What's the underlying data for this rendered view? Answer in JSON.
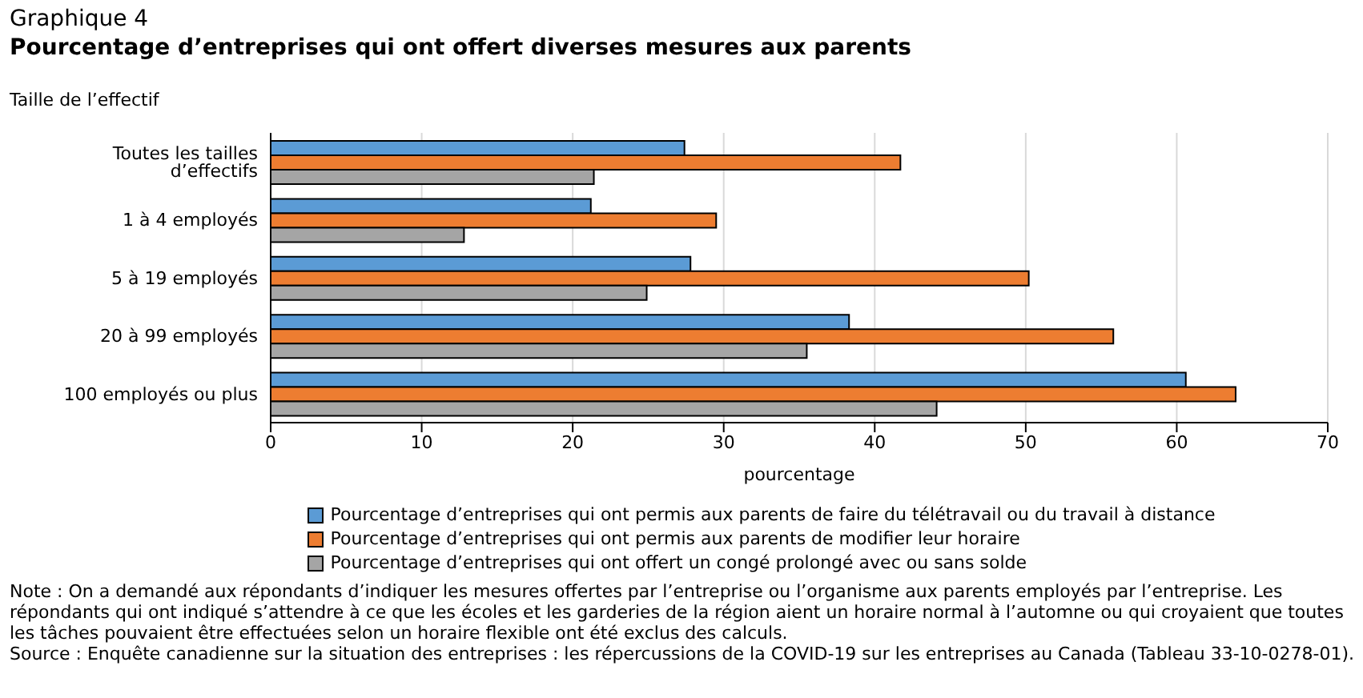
{
  "chart_data": {
    "type": "bar",
    "orientation": "horizontal",
    "title": "Graphique 4",
    "subtitle": "Pourcentage d’entreprises qui ont offert diverses mesures aux parents",
    "ylabel": "Taille de l’effectif",
    "xlabel": "pourcentage",
    "categories": [
      "Toutes les tailles d’effectifs",
      "1 à 4 employés",
      "5 à 19 employés",
      "20 à 99 employés",
      "100 employés ou plus"
    ],
    "series": [
      {
        "name": "Pourcentage d’entreprises qui ont permis aux parents de faire du télétravail ou du travail à distance",
        "color": "#5b9bd5",
        "values": [
          27.4,
          21.2,
          27.8,
          38.3,
          60.6
        ]
      },
      {
        "name": "Pourcentage d’entreprises qui ont permis aux parents de modifier leur horaire",
        "color": "#ed7d31",
        "values": [
          41.7,
          29.5,
          50.2,
          55.8,
          63.9
        ]
      },
      {
        "name": "Pourcentage d’entreprises qui ont offert un congé prolongé avec ou sans solde",
        "color": "#a5a5a5",
        "values": [
          21.4,
          12.8,
          24.9,
          35.5,
          44.1
        ]
      }
    ],
    "xlim": [
      0,
      70
    ],
    "xticks": [
      0,
      10,
      20,
      30,
      40,
      50,
      60,
      70
    ],
    "grid": "x",
    "legend": "bottom",
    "annotations": [
      "Note : On a demandé aux répondants d’indiquer les mesures offertes par l’entreprise ou l’organisme aux parents employés par l’entreprise. Les répondants qui ont indiqué s’attendre à ce que les écoles et les garderies de la région aient un horaire normal à l’automne ou qui croyaient que toutes les tâches pouvaient être effectuées selon un horaire flexible ont été exclus des calculs.",
      "Source : Enquête canadienne sur la situation des entreprises : les répercussions de la COVID-19 sur les entreprises au Canada (Tableau 33-10-0278-01)."
    ]
  }
}
